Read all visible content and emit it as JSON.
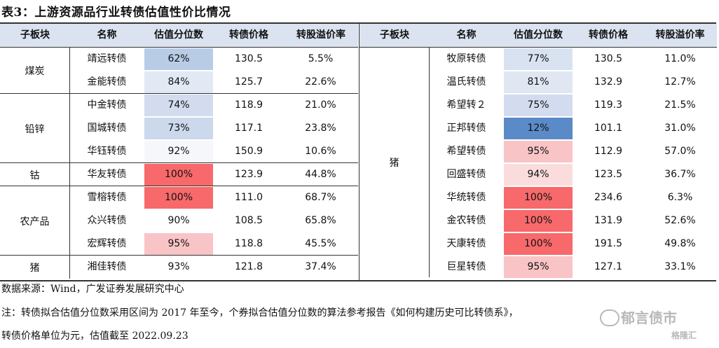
{
  "title": "表3：上游资源品行业转债估值性价比情况",
  "headers": [
    "子板块",
    "名称",
    "估值分位数",
    "转债价格",
    "转股溢价率"
  ],
  "left_rows": [
    {
      "name": "靖远转债",
      "pct": "62%",
      "price": "130.5",
      "premium": "5.5%",
      "color": "#b9cce6"
    },
    {
      "name": "金能转债",
      "pct": "84%",
      "price": "125.7",
      "premium": "22.6%",
      "color": "#e2e9f5"
    },
    {
      "name": "中金转债",
      "pct": "74%",
      "price": "118.9",
      "premium": "21.0%",
      "color": "#d2dcee"
    },
    {
      "name": "国城转债",
      "pct": "73%",
      "price": "117.1",
      "premium": "23.8%",
      "color": "#ccd8ec"
    },
    {
      "name": "华钰转债",
      "pct": "92%",
      "price": "150.9",
      "premium": "10.6%",
      "color": "#f6f7fb"
    },
    {
      "name": "华友转债",
      "pct": "100%",
      "price": "123.9",
      "premium": "44.8%",
      "color": "#f7696b"
    },
    {
      "name": "雪榕转债",
      "pct": "100%",
      "price": "111.0",
      "premium": "68.7%",
      "color": "#f7696b"
    },
    {
      "name": "众兴转债",
      "pct": "90%",
      "price": "108.5",
      "premium": "65.8%",
      "color": "#ffffff"
    },
    {
      "name": "宏辉转债",
      "pct": "95%",
      "price": "118.8",
      "premium": "45.5%",
      "color": "#f9c4c6"
    },
    {
      "name": "湘佳转债",
      "pct": "93%",
      "price": "121.8",
      "premium": "37.4%",
      "color": "#ffffff"
    }
  ],
  "left_groups": [
    {
      "label": "煤炭",
      "start": 0,
      "span": 2
    },
    {
      "label": "铅锌",
      "start": 2,
      "span": 3
    },
    {
      "label": "钴",
      "start": 5,
      "span": 1
    },
    {
      "label": "农产品",
      "start": 6,
      "span": 3
    },
    {
      "label": "猪",
      "start": 9,
      "span": 1
    }
  ],
  "right_rows": [
    {
      "name": "牧原转债",
      "pct": "77%",
      "price": "130.5",
      "premium": "11.0%",
      "color": "#d9e2f1"
    },
    {
      "name": "温氏转债",
      "pct": "81%",
      "price": "132.9",
      "premium": "12.7%",
      "color": "#e0e7f3"
    },
    {
      "name": "希望转２",
      "pct": "75%",
      "price": "119.3",
      "premium": "21.5%",
      "color": "#d2dcee"
    },
    {
      "name": "正邦转债",
      "pct": "12%",
      "price": "101.1",
      "premium": "31.0%",
      "color": "#5b8ac9"
    },
    {
      "name": "希望转债",
      "pct": "95%",
      "price": "112.9",
      "premium": "57.0%",
      "color": "#f9c4c6"
    },
    {
      "name": "回盛转债",
      "pct": "94%",
      "price": "123.5",
      "premium": "36.7%",
      "color": "#fbdcdd"
    },
    {
      "name": "华统转债",
      "pct": "100%",
      "price": "234.6",
      "premium": "6.3%",
      "color": "#f7696b"
    },
    {
      "name": "金农转债",
      "pct": "100%",
      "price": "131.9",
      "premium": "52.6%",
      "color": "#f7696b"
    },
    {
      "name": "天康转债",
      "pct": "100%",
      "price": "191.5",
      "premium": "49.8%",
      "color": "#f7696b"
    },
    {
      "name": "巨星转债",
      "pct": "95%",
      "price": "127.1",
      "premium": "33.1%",
      "color": "#f9c4c6"
    }
  ],
  "right_group": {
    "label": "猪"
  },
  "notes": {
    "source": "数据来源：Wind，广发证券发展研究中心",
    "note1": "注：转债拟合估值分位数采用区间为 2017 年至今，个券拟合估值分位数的算法参考报告《如何构建历史可比",
    "note1_tail": "转债",
    "note1_end": "系》，",
    "note2": "转债价格单位为元，估值截至 2022.09.23"
  },
  "watermark": {
    "text1": "郁言债市",
    "text2": "格隆汇"
  }
}
